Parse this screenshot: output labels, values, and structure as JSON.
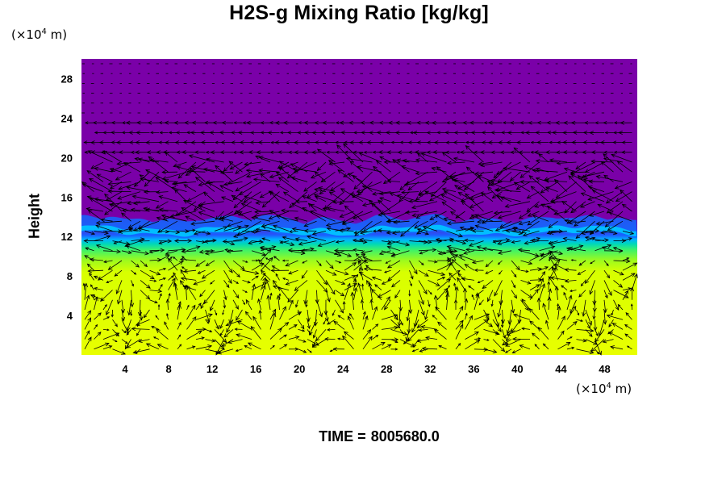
{
  "chart_data": {
    "type": "heatmap",
    "title": "H2S-g Mixing Ratio [kg/kg]",
    "ylabel": "Height",
    "xlabel": "",
    "x_unit": "(×10⁴ m)",
    "y_unit": "(×10⁴ m)",
    "x_ticks": [
      4,
      8,
      12,
      16,
      20,
      24,
      28,
      32,
      36,
      40,
      44,
      48
    ],
    "y_ticks": [
      4,
      8,
      12,
      16,
      20,
      24,
      28
    ],
    "xlim": [
      0,
      51
    ],
    "ylim": [
      0,
      30
    ],
    "regions": [
      {
        "name": "upper",
        "y_range": [
          13,
          30
        ],
        "color": "#7a00a8"
      },
      {
        "name": "interface",
        "y_range": [
          12,
          13.5
        ],
        "color": "#1f8cff"
      },
      {
        "name": "transition",
        "y_range": [
          10,
          12
        ],
        "color": "#7cff3a"
      },
      {
        "name": "lower",
        "y_range": [
          0,
          10
        ],
        "color": "#e8ff00"
      }
    ],
    "interface_height": 12.6,
    "overlay": "wind vector arrows",
    "grid": false
  },
  "footer": {
    "time_label": "TIME =",
    "time_value": "8005680.0"
  },
  "colors": {
    "upper": "#7a00a8",
    "lower": "#e8ff00",
    "arrow": "#000000"
  }
}
